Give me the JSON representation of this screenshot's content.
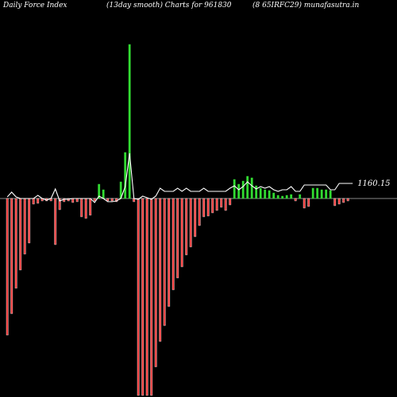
{
  "header": {
    "left": "Daily Force  Index",
    "middle": "(13day smooth) Charts for 961830",
    "right": "(8                  65IRFC29) munafasutra.in"
  },
  "colors": {
    "background": "#000000",
    "positive": "#33dd33",
    "negative": "#ff3333",
    "line": "#ffffff",
    "zero_line": "#888888",
    "text": "#ffffff"
  },
  "chart_data": {
    "type": "bar",
    "title": "Daily Force  Index",
    "subtitle": "(13day smooth) Charts for 961830",
    "value_label": "1160.15",
    "ylim": [
      -250,
      195
    ],
    "bars": [
      -172,
      -145,
      -113,
      -90,
      -70,
      -56,
      -7,
      -6,
      -3,
      -3,
      -3,
      -58,
      -14,
      -4,
      -3,
      -5,
      -4,
      -23,
      -25,
      -21,
      -3,
      18,
      11,
      -3,
      -3,
      -4,
      21,
      58,
      194,
      -4,
      -248,
      -248,
      -248,
      -248,
      -212,
      -180,
      -160,
      -136,
      -115,
      -100,
      -86,
      -71,
      -61,
      -48,
      -34,
      -23,
      -22,
      -18,
      -15,
      -11,
      -15,
      -8,
      24,
      18,
      22,
      28,
      26,
      16,
      13,
      11,
      10,
      7,
      4,
      3,
      4,
      5,
      -3,
      5,
      -12,
      -10,
      13,
      13,
      11,
      11,
      10,
      -9,
      -7,
      -5,
      -3
    ],
    "line": [
      2,
      8,
      2,
      0,
      0,
      0,
      0,
      4,
      0,
      -2,
      0,
      12,
      -3,
      -1,
      -1,
      0,
      0,
      0,
      0,
      0,
      -5,
      3,
      0,
      -4,
      -4,
      -3,
      0,
      15,
      57,
      0,
      -1,
      3,
      1,
      -1,
      3,
      13,
      9,
      9,
      9,
      13,
      9,
      13,
      9,
      9,
      9,
      13,
      9,
      9,
      9,
      9,
      9,
      13,
      16,
      11,
      15,
      21,
      16,
      12,
      15,
      13,
      15,
      11,
      9,
      11,
      11,
      15,
      9,
      9,
      17,
      17,
      17,
      17,
      17,
      17,
      11,
      11,
      19,
      19,
      19
    ]
  }
}
